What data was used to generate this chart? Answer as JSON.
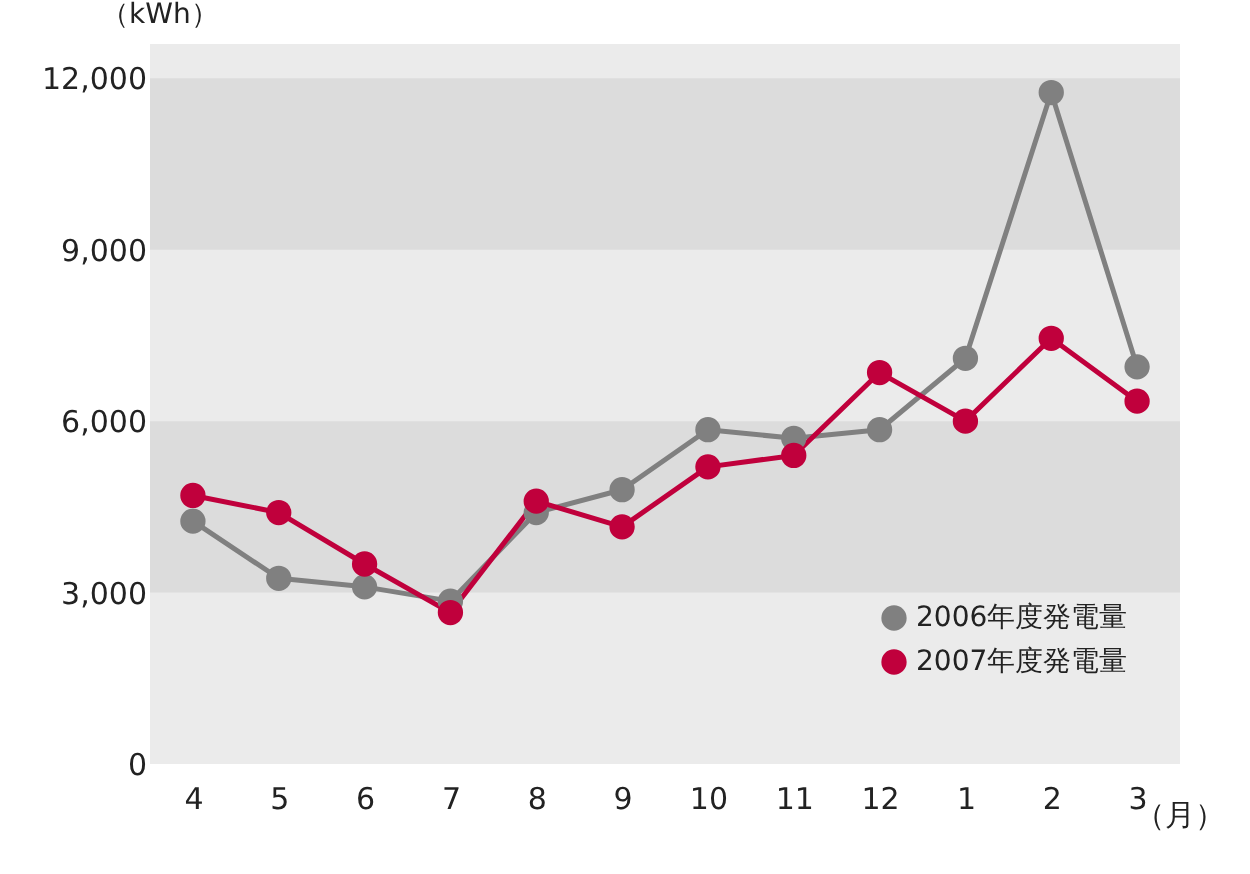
{
  "chart_data": {
    "type": "line",
    "ylabel": "（kWh）",
    "xlabel": "（月）",
    "categories": [
      "4",
      "5",
      "6",
      "7",
      "8",
      "9",
      "10",
      "11",
      "12",
      "1",
      "2",
      "3"
    ],
    "series": [
      {
        "name": "2006年度発電量",
        "color": "#808080",
        "values": [
          4250,
          3250,
          3100,
          2850,
          4400,
          4800,
          5850,
          5700,
          5850,
          7100,
          11750,
          6950
        ]
      },
      {
        "name": "2007年度発電量",
        "color": "#c0003c",
        "values": [
          4700,
          4400,
          3500,
          2650,
          4600,
          4150,
          5200,
          5400,
          6850,
          6000,
          7450,
          6350
        ]
      }
    ],
    "ylim": [
      0,
      12600
    ],
    "yticks": [
      {
        "value": 0,
        "label": "0"
      },
      {
        "value": 3000,
        "label": "3,000"
      },
      {
        "value": 6000,
        "label": "6,000"
      },
      {
        "value": 9000,
        "label": "9,000"
      },
      {
        "value": 12000,
        "label": "12,000"
      }
    ],
    "bands": [
      {
        "axis": "y",
        "from": 3000,
        "to": 6000,
        "color": "#dcdcdc"
      },
      {
        "axis": "y",
        "from": 9000,
        "to": 12000,
        "color": "#dcdcdc"
      }
    ],
    "marker": "circle",
    "line_style": "solid",
    "legend": "bottom right"
  }
}
